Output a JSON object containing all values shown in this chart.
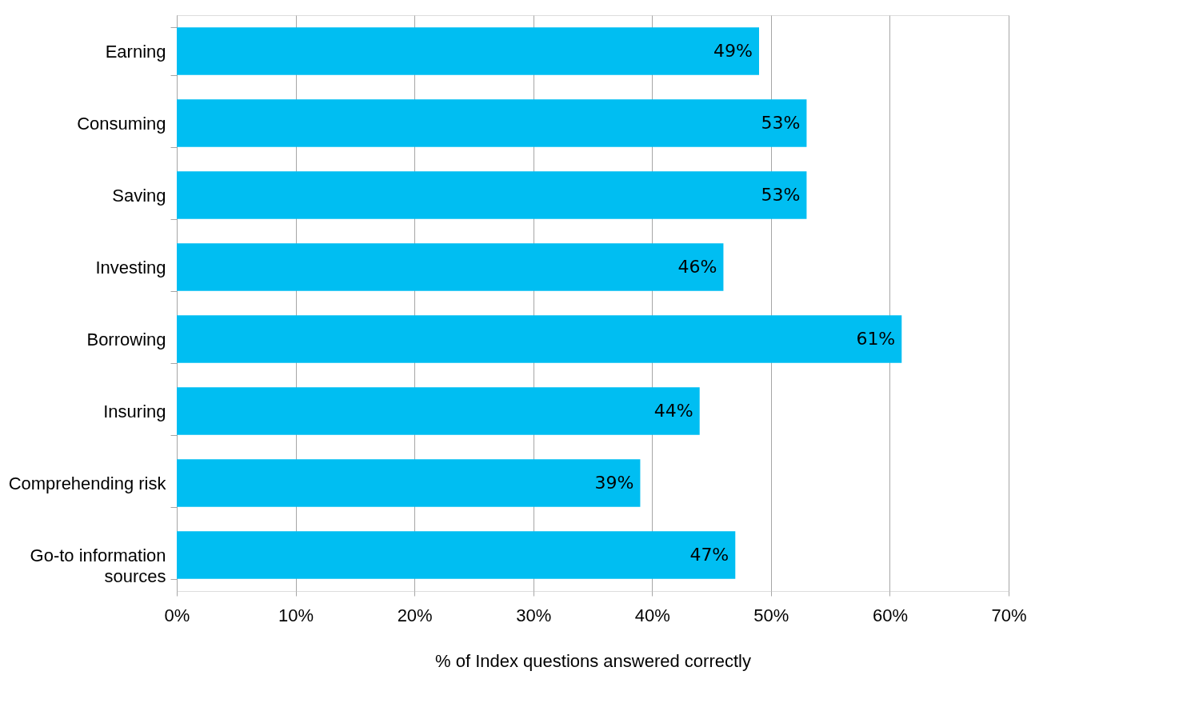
{
  "chart_data": {
    "type": "bar",
    "orientation": "horizontal",
    "categories": [
      "Earning",
      "Consuming",
      "Saving",
      "Investing",
      "Borrowing",
      "Insuring",
      "Comprehending risk",
      "Go-to information sources"
    ],
    "values": [
      49,
      53,
      53,
      46,
      61,
      44,
      39,
      47
    ],
    "value_labels": [
      "49%",
      "53%",
      "53%",
      "46%",
      "61%",
      "44%",
      "39%",
      "47%"
    ],
    "color": "#00bef2",
    "xlabel": "% of Index questions answered correctly",
    "xlim": [
      0,
      70
    ],
    "xticks": [
      {
        "value": 0,
        "label": "0%"
      },
      {
        "value": 10,
        "label": "10%"
      },
      {
        "value": 20,
        "label": "20%"
      },
      {
        "value": 30,
        "label": "30%"
      },
      {
        "value": 40,
        "label": "40%"
      },
      {
        "value": 50,
        "label": "50%"
      },
      {
        "value": 60,
        "label": "60%"
      },
      {
        "value": 70,
        "label": "70%"
      }
    ],
    "grid": "x"
  }
}
